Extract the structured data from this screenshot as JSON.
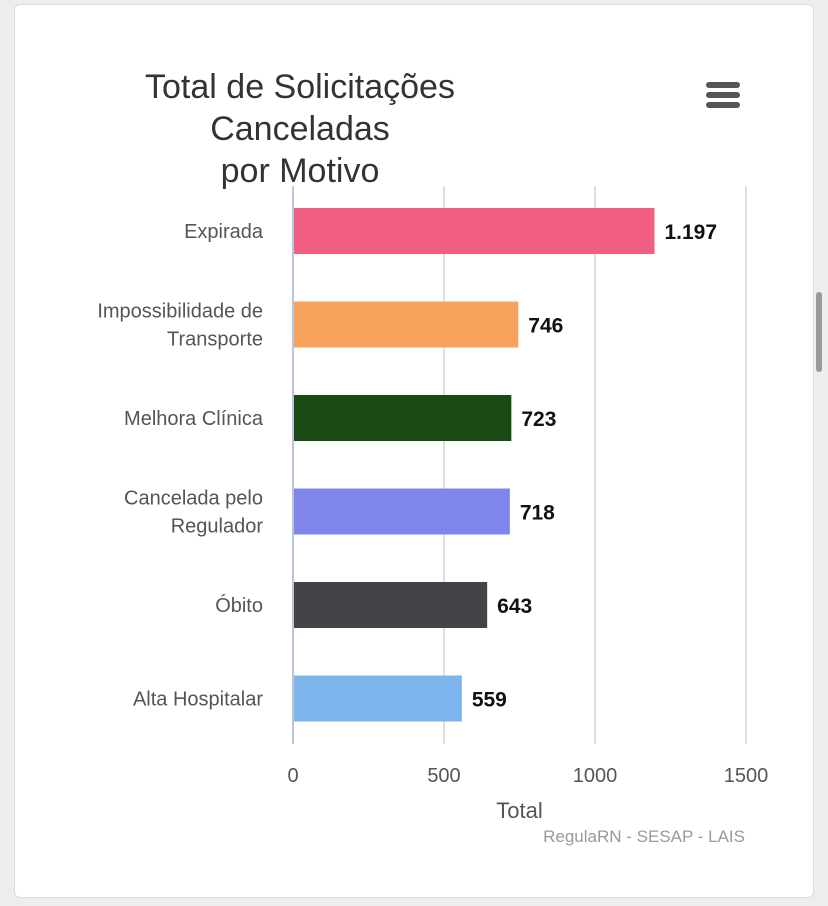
{
  "chart_data": {
    "type": "bar",
    "orientation": "horizontal",
    "title": "Total de Solicitações Canceladas por Motivo",
    "title_lines": [
      "Total de Solicitações Canceladas",
      "por Motivo"
    ],
    "categories": [
      [
        "Expirada"
      ],
      [
        "Impossibilidade de",
        "Transporte"
      ],
      [
        "Melhora Clínica"
      ],
      [
        "Cancelada pelo",
        "Regulador"
      ],
      [
        "Óbito"
      ],
      [
        "Alta Hospitalar"
      ]
    ],
    "values": [
      1197,
      746,
      723,
      718,
      643,
      559
    ],
    "value_labels": [
      "1.197",
      "746",
      "723",
      "718",
      "643",
      "559"
    ],
    "colors": [
      "#f05f82",
      "#f7a35c",
      "#1a4a14",
      "#8085e9",
      "#434348",
      "#7cb5ec"
    ],
    "xlabel": "Total",
    "xlim": [
      0,
      1500
    ],
    "xticks": [
      0,
      500,
      1000,
      1500
    ],
    "grid": true,
    "legend": "none",
    "credits": "RegulaRN - SESAP - LAIS"
  },
  "menu_icon": "hamburger-menu-icon"
}
